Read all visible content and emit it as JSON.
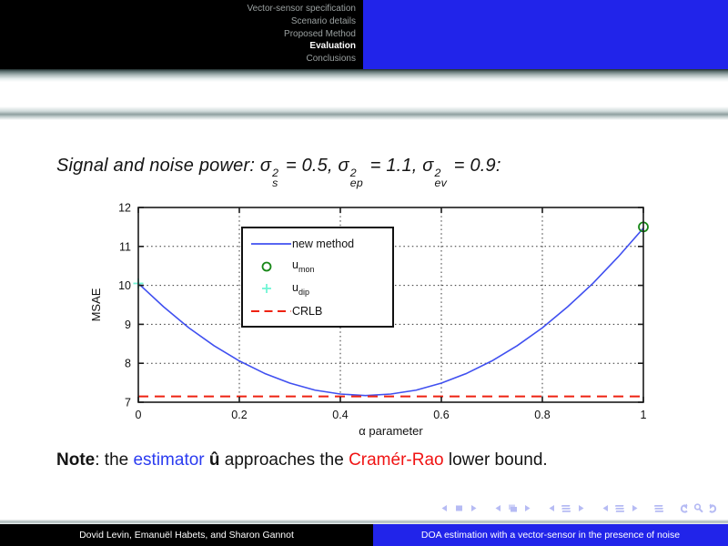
{
  "header": {
    "sections": [
      {
        "label": "Vector-sensor specification",
        "active": false
      },
      {
        "label": "Scenario details",
        "active": false
      },
      {
        "label": "Proposed Method",
        "active": false
      },
      {
        "label": "Evaluation",
        "active": true
      },
      {
        "label": "Conclusions",
        "active": false
      }
    ]
  },
  "colors": {
    "accent_blue": "#2124ea",
    "nav_dim_text": "#9aa0a0",
    "curve_blue": "#4050f0",
    "crlb_red": "#ee2211",
    "umon_green": "#178717",
    "udip_cyan": "#70f5d5",
    "nav_icon": "#b6bbf4",
    "note_blue": "#2b3cf0",
    "note_red": "#f01414"
  },
  "title": {
    "segments": [
      {
        "text": "Signal and noise power: "
      },
      {
        "math": {
          "base": "σ",
          "sup": "2",
          "sub": "s"
        }
      },
      {
        "text": " = 0.5, "
      },
      {
        "math": {
          "base": "σ",
          "sup": "2",
          "sub": "ep"
        }
      },
      {
        "text": " = 1.1, "
      },
      {
        "math": {
          "base": "σ",
          "sup": "2",
          "sub": "ev"
        }
      },
      {
        "text": " = 0.9:"
      }
    ]
  },
  "chart_data": {
    "type": "line",
    "title": "",
    "xlabel": "α parameter",
    "ylabel": "MSAE",
    "xlim": [
      0,
      1
    ],
    "ylim": [
      7,
      12
    ],
    "xticks": [
      0,
      0.2,
      0.4,
      0.6,
      0.8,
      1
    ],
    "yticks": [
      7,
      8,
      9,
      10,
      11,
      12
    ],
    "grid": true,
    "legend_position": "upper-left-inside",
    "series": [
      {
        "name": "new method",
        "type": "line",
        "x": [
          0,
          0.05,
          0.1,
          0.15,
          0.2,
          0.25,
          0.3,
          0.35,
          0.4,
          0.45,
          0.5,
          0.55,
          0.6,
          0.65,
          0.7,
          0.75,
          0.8,
          0.85,
          0.9,
          0.95,
          1
        ],
        "y": [
          10.05,
          9.45,
          8.91,
          8.45,
          8.06,
          7.74,
          7.49,
          7.31,
          7.21,
          7.17,
          7.21,
          7.31,
          7.49,
          7.74,
          8.06,
          8.45,
          8.91,
          9.45,
          10.05,
          10.73,
          11.47
        ]
      },
      {
        "name": "u_mon",
        "type": "scatter",
        "marker": "circle",
        "points": [
          [
            1,
            11.5
          ]
        ]
      },
      {
        "name": "u_dip",
        "type": "scatter",
        "marker": "plus",
        "points": [
          [
            0,
            10.05
          ]
        ]
      },
      {
        "name": "CRLB",
        "type": "hline",
        "y": 7.15
      }
    ],
    "legend": [
      {
        "label": "new method",
        "sub": "",
        "marker": "line"
      },
      {
        "label": "u",
        "sub": "mon",
        "marker": "circle"
      },
      {
        "label": "u",
        "sub": "dip",
        "marker": "plus"
      },
      {
        "label": "CRLB",
        "sub": "",
        "marker": "dash"
      }
    ]
  },
  "note": {
    "segments": [
      {
        "text": "Note",
        "bold": true
      },
      {
        "text": ": the "
      },
      {
        "text": "estimator",
        "color": "note_blue"
      },
      {
        "text": " "
      },
      {
        "text": "û",
        "bold": true
      },
      {
        "text": " approaches the "
      },
      {
        "text": "Cramér-Rao",
        "color": "note_red"
      },
      {
        "text": " lower bound."
      }
    ]
  },
  "nav_icons": [
    {
      "name": "prev-slide-icon",
      "shape": "tri-left",
      "gap": false
    },
    {
      "name": "slide-icon",
      "shape": "rect",
      "gap": false
    },
    {
      "name": "next-slide-icon",
      "shape": "tri-right",
      "gap": false
    },
    {
      "name": "prev-frame-icon",
      "shape": "tri-left",
      "gap": true
    },
    {
      "name": "frame-icon",
      "shape": "frame",
      "gap": false
    },
    {
      "name": "next-frame-icon",
      "shape": "tri-right",
      "gap": false
    },
    {
      "name": "prev-subsection-icon",
      "shape": "lines-tri-left",
      "gap": true
    },
    {
      "name": "subsection-list-icon",
      "shape": "lines",
      "gap": false
    },
    {
      "name": "next-subsection-icon",
      "shape": "tri-right",
      "gap": false
    },
    {
      "name": "prev-section-icon",
      "shape": "lines-tri-left",
      "gap": true
    },
    {
      "name": "section-list-icon",
      "shape": "lines",
      "gap": false
    },
    {
      "name": "next-section-icon",
      "shape": "tri-right",
      "gap": false
    },
    {
      "name": "appendix-icon",
      "shape": "lines",
      "gap": true
    },
    {
      "name": "back-icon",
      "shape": "undo",
      "gap": true
    },
    {
      "name": "search-icon",
      "shape": "search",
      "gap": false
    },
    {
      "name": "forward-icon",
      "shape": "redo",
      "gap": false
    }
  ],
  "footer": {
    "authors": "Dovid Levin, Emanuël Habets, and Sharon Gannot",
    "title": "DOA estimation with a vector-sensor in the presence of noise"
  }
}
